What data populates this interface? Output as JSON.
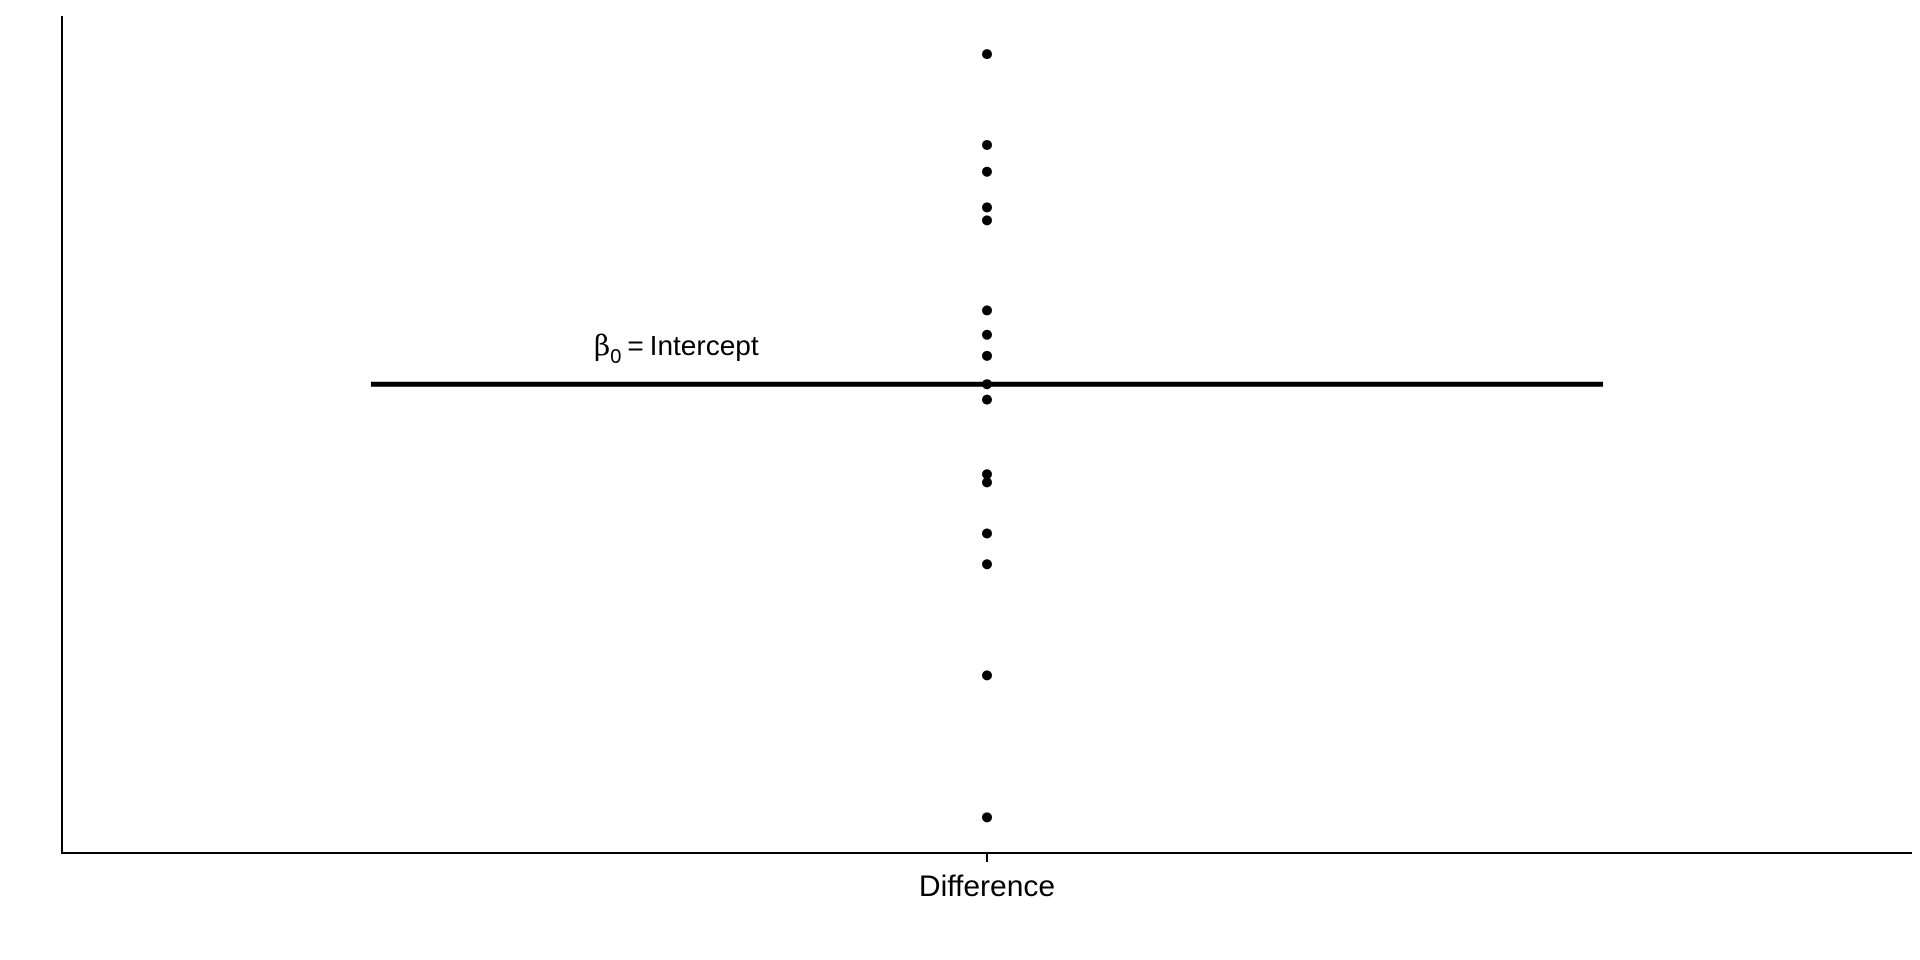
{
  "chart_data": {
    "type": "scatter",
    "categories": [
      "Difference"
    ],
    "x": [
      "Difference",
      "Difference",
      "Difference",
      "Difference",
      "Difference",
      "Difference",
      "Difference",
      "Difference",
      "Difference",
      "Difference",
      "Difference",
      "Difference",
      "Difference",
      "Difference",
      "Difference",
      "Difference"
    ],
    "values": [
      95.3,
      84.1,
      80.8,
      76.4,
      74.8,
      63.7,
      60.7,
      58.1,
      52.7,
      43.5,
      42.5,
      36.2,
      32.4,
      18.7,
      1.2,
      54.6
    ],
    "intercept_value": 54.6,
    "intercept_label": {
      "symbol": "β",
      "subscript": "0",
      "equals": "=",
      "text": "Intercept"
    },
    "xlabel": "",
    "ylabel": "",
    "ylim": [
      -3.2,
      100
    ],
    "yaxis_ticks_shown": false,
    "grid": false,
    "legend": "none"
  }
}
